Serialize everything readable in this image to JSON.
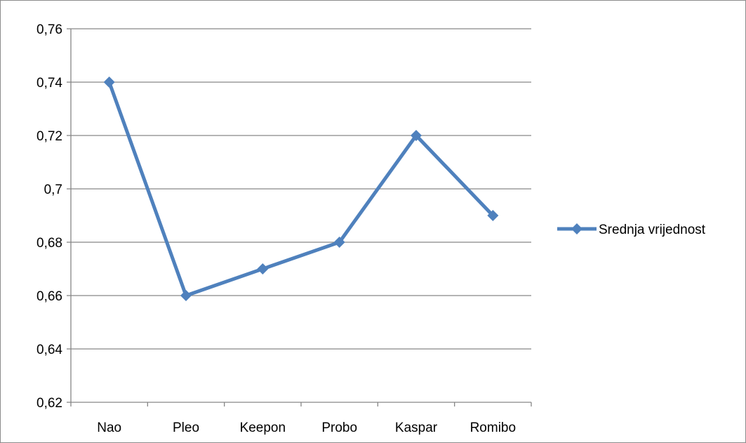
{
  "chart_data": {
    "type": "line",
    "title": "",
    "xlabel": "",
    "ylabel": "",
    "categories": [
      "Nao",
      "Pleo",
      "Keepon",
      "Probo",
      "Kaspar",
      "Romibo"
    ],
    "series": [
      {
        "name": "Srednja vrijednost",
        "values": [
          0.74,
          0.66,
          0.67,
          0.68,
          0.72,
          0.69
        ],
        "color": "#4F81BD",
        "marker": "diamond"
      }
    ],
    "ylim": [
      0.62,
      0.76
    ],
    "ystep": 0.02,
    "ytick_labels": [
      "0,62",
      "0,64",
      "0,66",
      "0,68",
      "0,7",
      "0,72",
      "0,74",
      "0,76"
    ],
    "grid": "horizontal",
    "legend_position": "right",
    "decimal_separator": ","
  }
}
